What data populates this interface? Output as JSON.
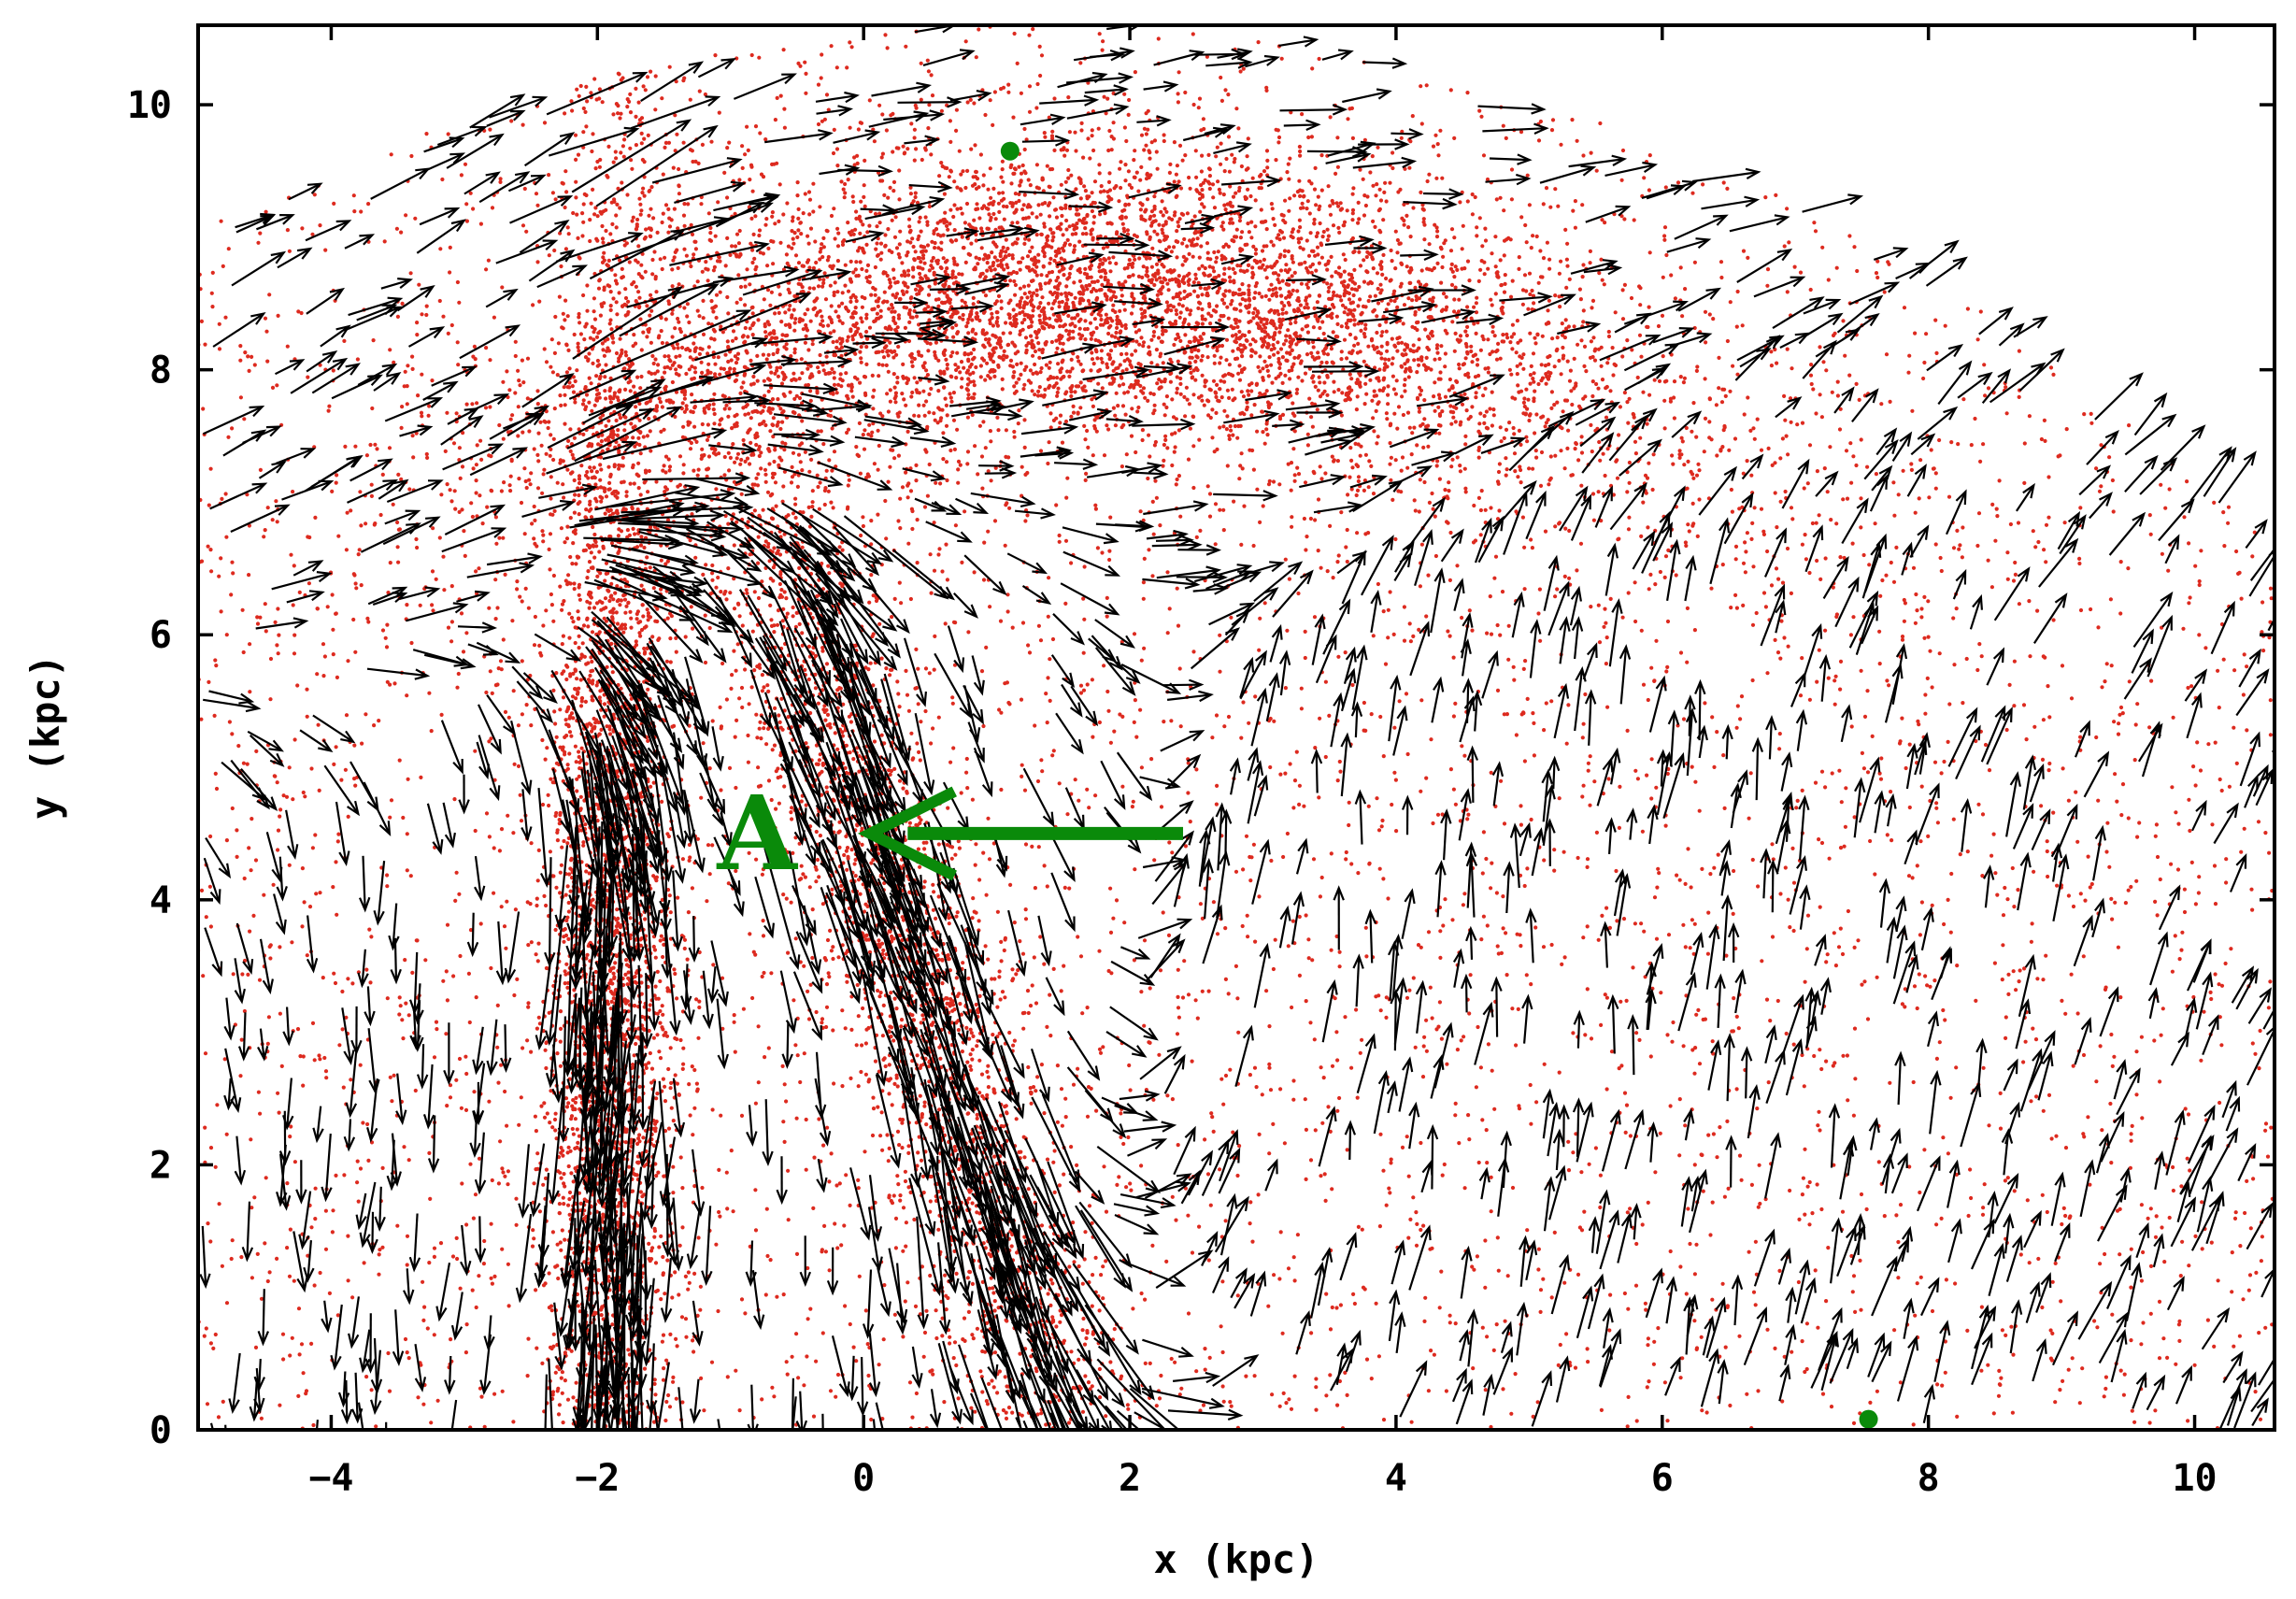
{
  "chart_data": {
    "type": "scatter",
    "xlabel": "x (kpc)",
    "ylabel": "y (kpc)",
    "xlim": [
      -5,
      10.6
    ],
    "ylim": [
      0,
      10.6
    ],
    "xticks": [
      -4,
      -2,
      0,
      2,
      4,
      6,
      8,
      10
    ],
    "yticks": [
      0,
      2,
      4,
      6,
      8,
      10
    ],
    "grid": false,
    "colors": {
      "particles": "#dd2a1f",
      "vectors": "#000000",
      "annotation": "#0a8a0a"
    },
    "particle_density_regions": [
      {
        "feature": "bulk",
        "xmin": -5,
        "xmax": 10.6,
        "ymin": 0,
        "ymax": 10.6,
        "relative_density": 1.0
      },
      {
        "feature": "upper-arc",
        "center": [
          1.8,
          8.6
        ],
        "spread": [
          2.2,
          0.6
        ],
        "relative_density": 3.0
      },
      {
        "feature": "left-filament",
        "center": [
          -1.9,
          3.5
        ],
        "spread": [
          0.25,
          3.2
        ],
        "relative_density": 2.0
      },
      {
        "feature": "central-filament",
        "center": [
          0.2,
          3.8
        ],
        "spread": [
          0.35,
          2.8
        ],
        "relative_density": 1.5
      }
    ],
    "velocity_field": [
      {
        "x": -2.0,
        "y": 3.0,
        "dx": -0.05,
        "dy": -1.0,
        "description": "left filament streaming down"
      },
      {
        "x": 0.1,
        "y": 4.5,
        "dx": 0.35,
        "dy": -1.0,
        "description": "central filament streaming down-right"
      },
      {
        "x": 2.0,
        "y": 8.7,
        "dx": 1.0,
        "dy": 0.1,
        "description": "upper arc streaming right"
      },
      {
        "x": 4.0,
        "y": 4.0,
        "dx": 0.1,
        "dy": 1.0,
        "description": "right-hand region streaming up"
      },
      {
        "x": -3.5,
        "y": 8.5,
        "dx": 1.0,
        "dy": 0.5,
        "description": "upper-left streaming up-right"
      }
    ],
    "markers": [
      {
        "x": 1.1,
        "y": 9.65
      },
      {
        "x": 7.55,
        "y": 0.08
      }
    ],
    "annotations": [
      {
        "label": "A",
        "x": -0.8,
        "y": 4.5,
        "arrow_from": [
          2.4,
          4.5
        ],
        "arrow_to": [
          0.05,
          4.5
        ]
      }
    ]
  }
}
